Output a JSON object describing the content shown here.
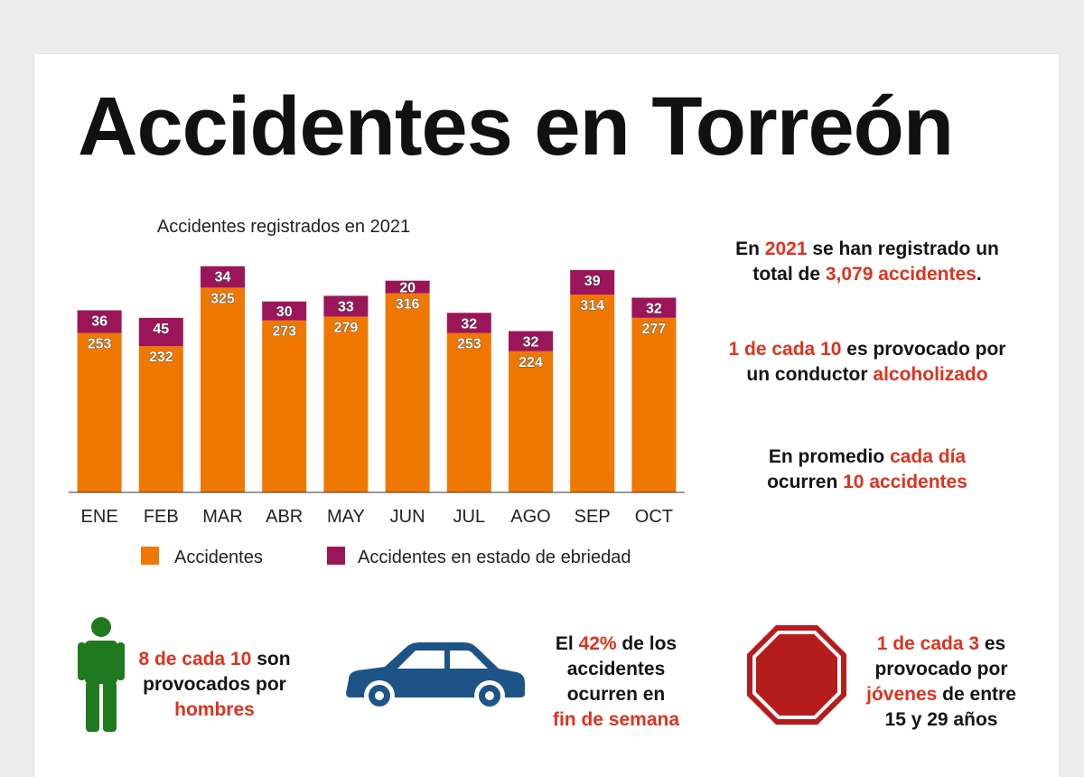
{
  "title": "Accidentes en Torreón",
  "colors": {
    "accent": "#e0321e",
    "orange": "#f07800",
    "purple": "#9c1558",
    "green": "#1f7a1f",
    "car": "#1e5386",
    "stop": "#b71c1c"
  },
  "chart_data": {
    "type": "bar",
    "stacked": true,
    "title": "Accidentes registrados en 2021",
    "xlabel": "",
    "ylabel": "",
    "categories": [
      "ENE",
      "FEB",
      "MAR",
      "ABR",
      "MAY",
      "JUN",
      "JUL",
      "AGO",
      "SEP",
      "OCT"
    ],
    "series": [
      {
        "name": "Accidentes",
        "color": "#f07800",
        "values": [
          253,
          232,
          325,
          273,
          279,
          316,
          253,
          224,
          314,
          277
        ]
      },
      {
        "name": "Accidentes en estado de ebriedad",
        "color": "#9c1558",
        "values": [
          36,
          45,
          34,
          30,
          33,
          20,
          32,
          32,
          39,
          32
        ]
      }
    ],
    "ylim": [
      0,
      380
    ],
    "grid": false,
    "legend": "bottom"
  },
  "stats": {
    "total": {
      "pre": "En ",
      "year": "2021",
      "mid": " se han registrado un",
      "pre2": "total de ",
      "value": "3,079 accidentes",
      "post": "."
    },
    "alcohol": {
      "ratio": "1 de cada 10",
      "mid": " es provocado por",
      "pre2": "un conductor ",
      "value": "alcoholizado"
    },
    "daily": {
      "pre": "En promedio ",
      "highlight": "cada día",
      "pre2": "ocurren ",
      "value": "10 accidentes"
    },
    "men": {
      "ratio": "8 de cada 10",
      "mid": " son",
      "line2": "provocados por",
      "value": "hombres"
    },
    "weekend": {
      "pre": "El ",
      "pct": "42%",
      "mid": " de los",
      "line2": "accidentes",
      "line3": "ocurren en",
      "value": "fin de semana"
    },
    "youth": {
      "ratio": "1 de cada 3",
      "mid": " es",
      "line2": "provocado por",
      "value": "jóvenes",
      "mid3": " de entre",
      "line4": "15 y 29 años"
    }
  },
  "icons": {
    "person": "person-icon",
    "car": "car-icon",
    "stop": "stop-sign-icon"
  }
}
